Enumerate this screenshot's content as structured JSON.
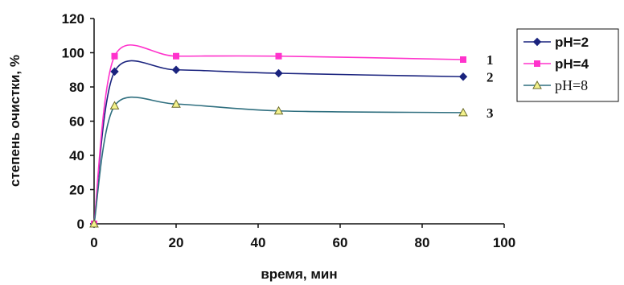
{
  "chart_data": {
    "type": "line",
    "xlabel": "время, мин",
    "ylabel": "степень очистки, %",
    "xlim": [
      0,
      100
    ],
    "ylim": [
      0,
      120
    ],
    "x_ticks": [
      "0",
      "20",
      "40",
      "60",
      "80",
      "100"
    ],
    "y_ticks": [
      "0",
      "20",
      "40",
      "60",
      "80",
      "100",
      "120"
    ],
    "grid": false,
    "legend_position": "right",
    "series": [
      {
        "name": "pH=2",
        "curve_label": "2",
        "color": "#1a237e",
        "marker": "diamond",
        "x": [
          0,
          5,
          20,
          45,
          90
        ],
        "y": [
          0,
          89,
          90,
          88,
          86
        ]
      },
      {
        "name": "pH=4",
        "curve_label": "1",
        "color": "#ff33cc",
        "marker": "square",
        "x": [
          0,
          5,
          20,
          45,
          90
        ],
        "y": [
          0,
          98,
          98,
          98,
          96
        ]
      },
      {
        "name": "pH=8",
        "curve_label": "3",
        "color": "#2f6f7f",
        "marker": "triangle",
        "x": [
          0,
          5,
          20,
          45,
          90
        ],
        "y": [
          0,
          69,
          70,
          66,
          65
        ]
      }
    ]
  }
}
